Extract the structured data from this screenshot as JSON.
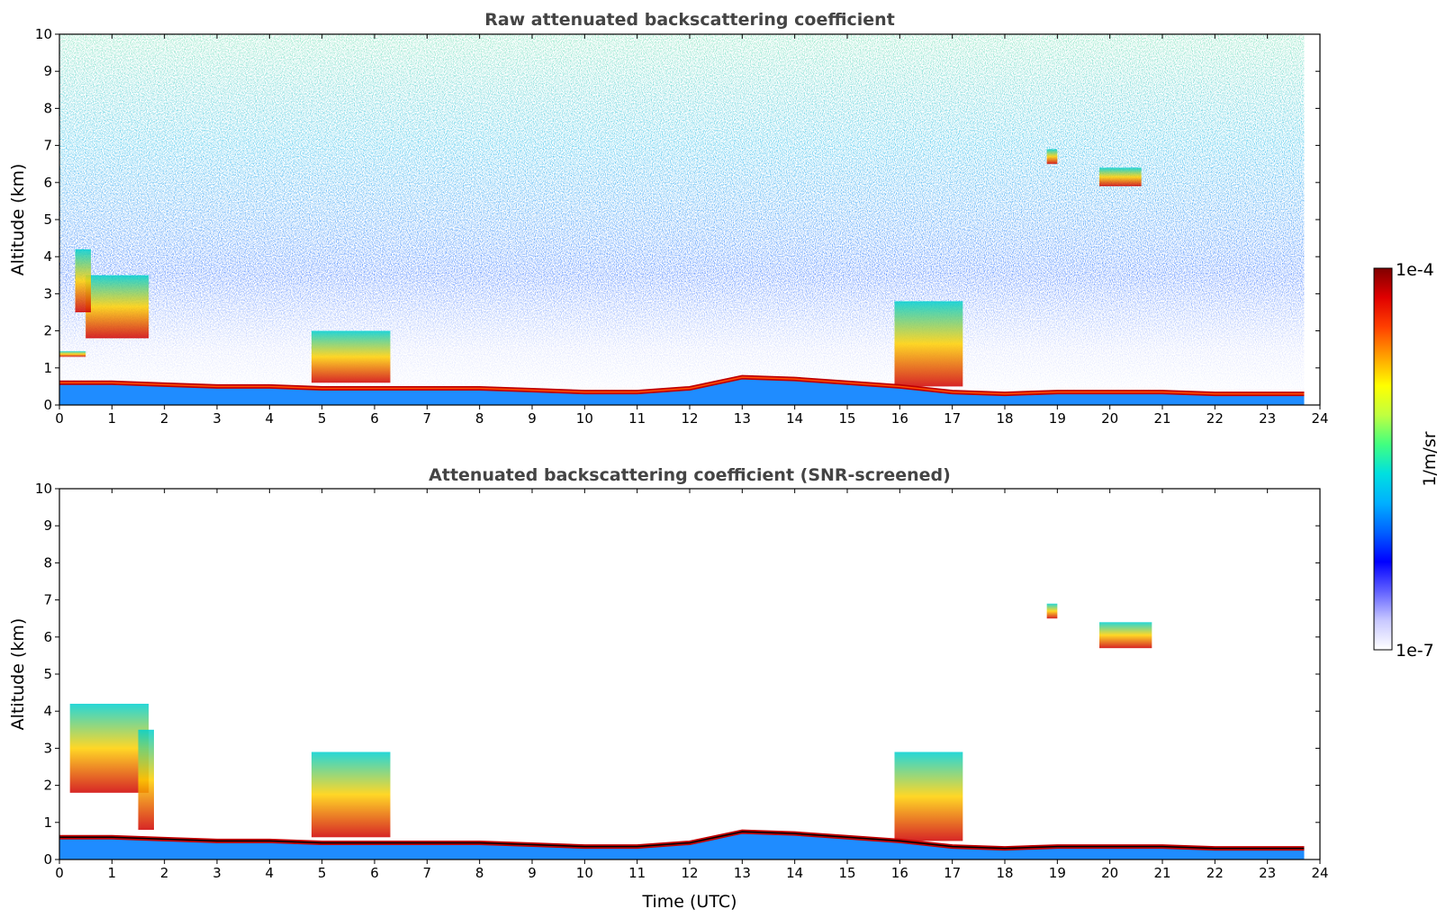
{
  "chart_data": [
    {
      "type": "heatmap",
      "title": "Raw attenuated backscattering coefficient",
      "xlabel": "",
      "ylabel": "Altitude (km)",
      "xlim": [
        0,
        24
      ],
      "ylim": [
        0,
        10
      ],
      "xticks": [
        0,
        1,
        2,
        3,
        4,
        5,
        6,
        7,
        8,
        9,
        10,
        11,
        12,
        13,
        14,
        15,
        16,
        17,
        18,
        19,
        20,
        21,
        22,
        23,
        24
      ],
      "yticks": [
        0,
        1,
        2,
        3,
        4,
        5,
        6,
        7,
        8,
        9,
        10
      ],
      "grid": false,
      "data_extent_x": [
        0,
        23.7
      ],
      "boundary_layer_top_km": {
        "x": [
          0,
          1,
          2,
          3,
          4,
          5,
          6,
          7,
          8,
          9,
          10,
          11,
          12,
          13,
          14,
          15,
          16,
          17,
          18,
          19,
          20,
          21,
          22,
          23,
          23.7
        ],
        "y": [
          0.6,
          0.6,
          0.55,
          0.5,
          0.5,
          0.45,
          0.45,
          0.45,
          0.45,
          0.4,
          0.35,
          0.35,
          0.45,
          0.75,
          0.7,
          0.6,
          0.5,
          0.35,
          0.3,
          0.35,
          0.35,
          0.35,
          0.3,
          0.3,
          0.3
        ]
      },
      "cloud_layers": [
        {
          "x0": 0.0,
          "x1": 0.5,
          "y0": 1.3,
          "y1": 1.45
        },
        {
          "x0": 0.5,
          "x1": 1.7,
          "y0": 1.8,
          "y1": 3.5
        },
        {
          "x0": 0.3,
          "x1": 0.6,
          "y0": 2.5,
          "y1": 4.2
        },
        {
          "x0": 4.8,
          "x1": 6.3,
          "y0": 0.6,
          "y1": 2.0
        },
        {
          "x0": 15.9,
          "x1": 17.2,
          "y0": 0.5,
          "y1": 2.8
        },
        {
          "x0": 18.8,
          "x1": 19.0,
          "y0": 6.5,
          "y1": 6.9
        },
        {
          "x0": 19.8,
          "x1": 20.6,
          "y0": 5.9,
          "y1": 6.4
        }
      ]
    },
    {
      "type": "heatmap",
      "title": "Attenuated backscattering coefficient (SNR-screened)",
      "xlabel": "Time (UTC)",
      "ylabel": "Altitude (km)",
      "xlim": [
        0,
        24
      ],
      "ylim": [
        0,
        10
      ],
      "xticks": [
        0,
        1,
        2,
        3,
        4,
        5,
        6,
        7,
        8,
        9,
        10,
        11,
        12,
        13,
        14,
        15,
        16,
        17,
        18,
        19,
        20,
        21,
        22,
        23,
        24
      ],
      "yticks": [
        0,
        1,
        2,
        3,
        4,
        5,
        6,
        7,
        8,
        9,
        10
      ],
      "grid": false,
      "data_extent_x": [
        0,
        23.7
      ],
      "cloud_layers": [
        {
          "x0": 0.2,
          "x1": 1.7,
          "y0": 1.8,
          "y1": 4.2
        },
        {
          "x0": 1.5,
          "x1": 1.8,
          "y0": 0.8,
          "y1": 3.5
        },
        {
          "x0": 4.8,
          "x1": 6.3,
          "y0": 0.6,
          "y1": 2.9
        },
        {
          "x0": 15.9,
          "x1": 17.2,
          "y0": 0.5,
          "y1": 2.9
        },
        {
          "x0": 18.8,
          "x1": 19.0,
          "y0": 6.5,
          "y1": 6.9
        },
        {
          "x0": 19.8,
          "x1": 20.8,
          "y0": 5.7,
          "y1": 6.4
        }
      ]
    }
  ],
  "colorbar": {
    "label": "1/m/sr",
    "max_label": "1e-4",
    "min_label": "1e-7",
    "colors": [
      "#ffffff",
      "#c8c8ff",
      "#6060ff",
      "#0000ff",
      "#0060ff",
      "#00b0ff",
      "#00e0e0",
      "#40ff80",
      "#c0ff40",
      "#ffff00",
      "#ffa000",
      "#ff4000",
      "#e00000",
      "#800000"
    ]
  }
}
